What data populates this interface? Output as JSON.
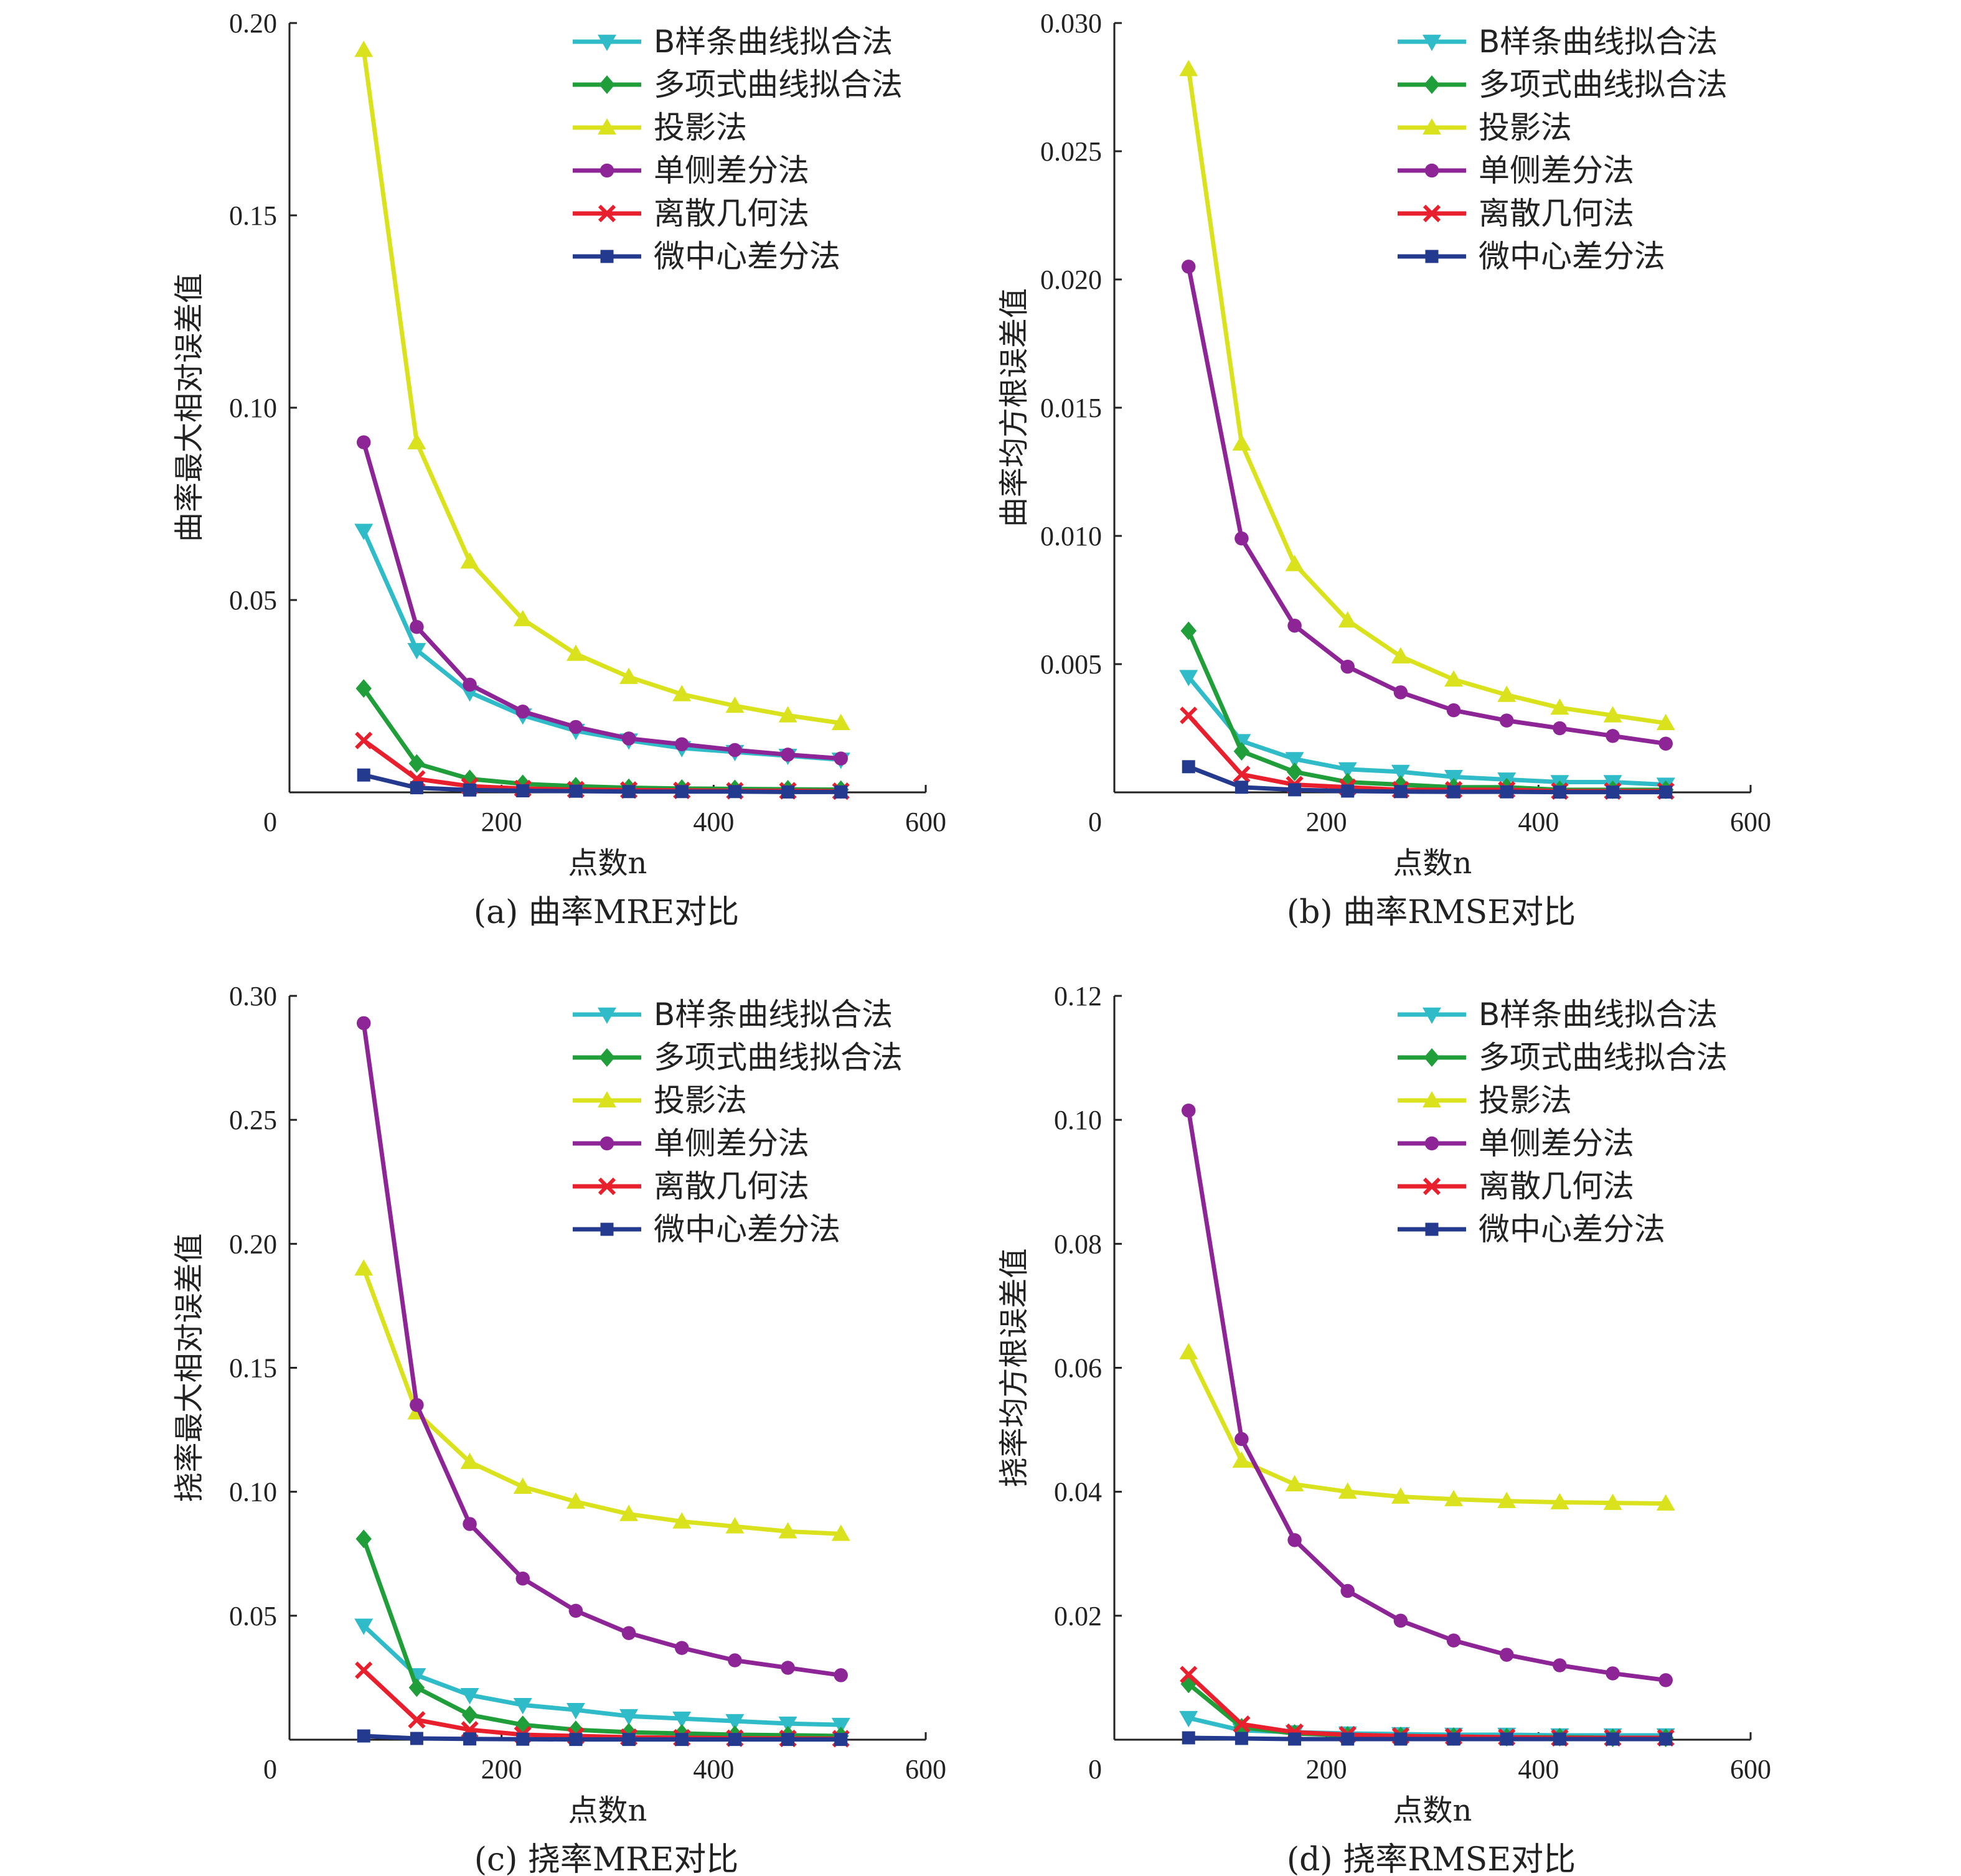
{
  "colors": {
    "B样条曲线拟合法": "#2fbcc8",
    "多项式曲线拟合法": "#1f9e3a",
    "投影法": "#d9e21c",
    "单侧差分法": "#8e2597",
    "离散几何法": "#e8202e",
    "微中心差分法": "#243a8f"
  },
  "markers": {
    "B样条曲线拟合法": "triangle-down",
    "多项式曲线拟合法": "diamond",
    "投影法": "triangle-up",
    "单侧差分法": "circle",
    "离散几何法": "cross",
    "微中心差分法": "square"
  },
  "chart_data": [
    {
      "id": "a",
      "type": "line",
      "caption": "(a) 曲率MRE对比",
      "xlabel": "点数n",
      "ylabel": "曲率最大相对误差值",
      "xlim": [
        0,
        600
      ],
      "ylim": [
        0,
        0.2
      ],
      "xticks": [
        0,
        200,
        400,
        600
      ],
      "xtick_labels": [
        "0",
        "200",
        "400",
        "600"
      ],
      "yticks": [
        0.05,
        0.1,
        0.15,
        0.2
      ],
      "ytick_labels": [
        "0.05",
        "0.10",
        "0.15",
        "0.20"
      ],
      "legend_position": "top-right",
      "x": [
        70,
        120,
        170,
        220,
        270,
        320,
        370,
        420,
        470,
        520
      ],
      "series": [
        {
          "name": "B样条曲线拟合法",
          "values": [
            0.068,
            0.037,
            0.026,
            0.02,
            0.016,
            0.0135,
            0.0115,
            0.0105,
            0.0095,
            0.0085
          ]
        },
        {
          "name": "多项式曲线拟合法",
          "values": [
            0.027,
            0.0075,
            0.0035,
            0.0022,
            0.0016,
            0.0012,
            0.001,
            0.0009,
            0.0008,
            0.0007
          ]
        },
        {
          "name": "投影法",
          "values": [
            0.193,
            0.091,
            0.06,
            0.045,
            0.036,
            0.03,
            0.0255,
            0.0225,
            0.02,
            0.018
          ]
        },
        {
          "name": "单侧差分法",
          "values": [
            0.091,
            0.043,
            0.028,
            0.021,
            0.017,
            0.014,
            0.0125,
            0.011,
            0.0098,
            0.0088
          ]
        },
        {
          "name": "离散几何法",
          "values": [
            0.0135,
            0.0035,
            0.0016,
            0.001,
            0.0007,
            0.0006,
            0.0005,
            0.0004,
            0.0004,
            0.0003
          ]
        },
        {
          "name": "微中心差分法",
          "values": [
            0.0045,
            0.0012,
            0.0006,
            0.0004,
            0.0003,
            0.0002,
            0.0002,
            0.0002,
            0.0001,
            0.0001
          ]
        }
      ]
    },
    {
      "id": "b",
      "type": "line",
      "caption": "(b) 曲率RMSE对比",
      "xlabel": "点数n",
      "ylabel": "曲率均方根误差值",
      "xlim": [
        0,
        600
      ],
      "ylim": [
        0,
        0.03
      ],
      "xticks": [
        0,
        200,
        400,
        600
      ],
      "xtick_labels": [
        "0",
        "200",
        "400",
        "600"
      ],
      "yticks": [
        0.005,
        0.01,
        0.015,
        0.02,
        0.025,
        0.03
      ],
      "ytick_labels": [
        "0.005",
        "0.010",
        "0.015",
        "0.020",
        "0.025",
        "0.030"
      ],
      "legend_position": "top-right",
      "x": [
        70,
        120,
        170,
        220,
        270,
        320,
        370,
        420,
        470,
        520
      ],
      "series": [
        {
          "name": "B样条曲线拟合法",
          "values": [
            0.0045,
            0.002,
            0.0013,
            0.0009,
            0.0008,
            0.0006,
            0.0005,
            0.0004,
            0.0004,
            0.0003
          ]
        },
        {
          "name": "多项式曲线拟合法",
          "values": [
            0.0063,
            0.0016,
            0.0008,
            0.0004,
            0.0003,
            0.0002,
            0.0002,
            0.0001,
            0.0001,
            0.0001
          ]
        },
        {
          "name": "投影法",
          "values": [
            0.0282,
            0.0136,
            0.0089,
            0.0067,
            0.0053,
            0.0044,
            0.0038,
            0.0033,
            0.003,
            0.0027
          ]
        },
        {
          "name": "单侧差分法",
          "values": [
            0.0205,
            0.0099,
            0.0065,
            0.0049,
            0.0039,
            0.0032,
            0.0028,
            0.0025,
            0.0022,
            0.0019
          ]
        },
        {
          "name": "离散几何法",
          "values": [
            0.003,
            0.0007,
            0.0003,
            0.0002,
            0.0001,
            0.0001,
            0.0001,
            5e-05,
            5e-05,
            5e-05
          ]
        },
        {
          "name": "微中心差分法",
          "values": [
            0.001,
            0.0002,
            0.0001,
            5e-05,
            3e-05,
            2e-05,
            2e-05,
            1e-05,
            1e-05,
            1e-05
          ]
        }
      ]
    },
    {
      "id": "c",
      "type": "line",
      "caption": "(c) 挠率MRE对比",
      "xlabel": "点数n",
      "ylabel": "挠率最大相对误差值",
      "xlim": [
        0,
        600
      ],
      "ylim": [
        0,
        0.3
      ],
      "xticks": [
        0,
        200,
        400,
        600
      ],
      "xtick_labels": [
        "0",
        "200",
        "400",
        "600"
      ],
      "yticks": [
        0.05,
        0.1,
        0.15,
        0.2,
        0.25,
        0.3
      ],
      "ytick_labels": [
        "0.05",
        "0.10",
        "0.15",
        "0.20",
        "0.25",
        "0.30"
      ],
      "legend_position": "top-right",
      "x": [
        70,
        120,
        170,
        220,
        270,
        320,
        370,
        420,
        470,
        520
      ],
      "series": [
        {
          "name": "B样条曲线拟合法",
          "values": [
            0.046,
            0.026,
            0.018,
            0.014,
            0.012,
            0.0095,
            0.0085,
            0.0075,
            0.0065,
            0.006
          ]
        },
        {
          "name": "多项式曲线拟合法",
          "values": [
            0.081,
            0.021,
            0.01,
            0.006,
            0.004,
            0.003,
            0.0025,
            0.002,
            0.0018,
            0.0015
          ]
        },
        {
          "name": "投影法",
          "values": [
            0.19,
            0.132,
            0.112,
            0.102,
            0.096,
            0.091,
            0.088,
            0.086,
            0.084,
            0.083
          ]
        },
        {
          "name": "单侧差分法",
          "values": [
            0.289,
            0.135,
            0.087,
            0.065,
            0.052,
            0.043,
            0.037,
            0.032,
            0.029,
            0.026
          ]
        },
        {
          "name": "离散几何法",
          "values": [
            0.028,
            0.008,
            0.004,
            0.002,
            0.0015,
            0.001,
            0.0008,
            0.0006,
            0.0005,
            0.0004
          ]
        },
        {
          "name": "微中心差分法",
          "values": [
            0.0015,
            0.0005,
            0.0003,
            0.0002,
            0.0001,
            0.0001,
            0.0001,
            0.0001,
            0.0001,
            0.0001
          ]
        }
      ]
    },
    {
      "id": "d",
      "type": "line",
      "caption": "(d) 挠率RMSE对比",
      "xlabel": "点数n",
      "ylabel": "挠率均方根误差值",
      "xlim": [
        0,
        600
      ],
      "ylim": [
        0,
        0.12
      ],
      "xticks": [
        0,
        200,
        400,
        600
      ],
      "xtick_labels": [
        "0",
        "200",
        "400",
        "600"
      ],
      "yticks": [
        0.02,
        0.04,
        0.06,
        0.08,
        0.1,
        0.12
      ],
      "ytick_labels": [
        "0.02",
        "0.04",
        "0.06",
        "0.08",
        "0.10",
        "0.12"
      ],
      "legend_position": "top-right",
      "x": [
        70,
        120,
        170,
        220,
        270,
        320,
        370,
        420,
        470,
        520
      ],
      "series": [
        {
          "name": "B样条曲线拟合法",
          "values": [
            0.0035,
            0.0015,
            0.0012,
            0.001,
            0.0009,
            0.0008,
            0.0008,
            0.0007,
            0.0007,
            0.0007
          ]
        },
        {
          "name": "多项式曲线拟合法",
          "values": [
            0.009,
            0.002,
            0.001,
            0.0007,
            0.0006,
            0.0005,
            0.0004,
            0.0004,
            0.0003,
            0.0003
          ]
        },
        {
          "name": "投影法",
          "values": [
            0.0625,
            0.045,
            0.0412,
            0.04,
            0.0392,
            0.0388,
            0.0385,
            0.0383,
            0.0382,
            0.0381
          ]
        },
        {
          "name": "单侧差分法",
          "values": [
            0.1015,
            0.0485,
            0.0322,
            0.024,
            0.0192,
            0.016,
            0.0137,
            0.012,
            0.0107,
            0.0096
          ]
        },
        {
          "name": "离散几何法",
          "values": [
            0.0105,
            0.0025,
            0.0012,
            0.0008,
            0.0006,
            0.0005,
            0.0004,
            0.0003,
            0.0003,
            0.0003
          ]
        },
        {
          "name": "微中心差分法",
          "values": [
            0.0003,
            0.0002,
            0.0001,
            0.0001,
            0.0001,
            0.0001,
            0.0001,
            0.0001,
            0.0001,
            0.0001
          ]
        }
      ]
    }
  ]
}
